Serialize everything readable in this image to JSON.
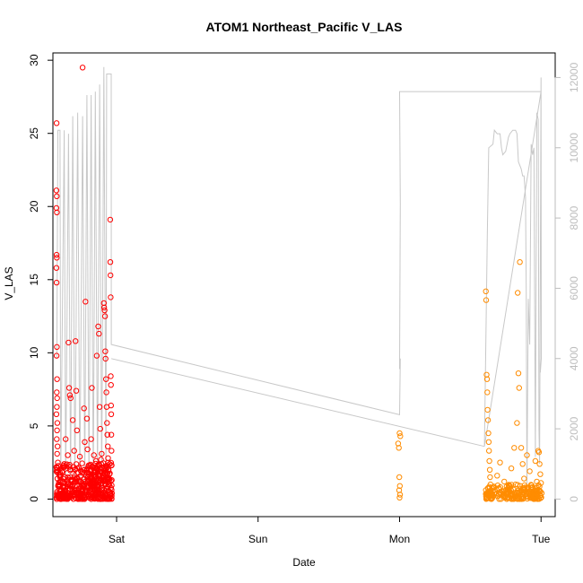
{
  "chart_data": {
    "type": "scatter",
    "title": "ATOM1 Northeast_Pacific V_LAS",
    "xlabel": "Date",
    "ylabel": "V_LAS",
    "x_ticks": [
      "Sat",
      "Sun",
      "Mon",
      "Tue"
    ],
    "x_tick_days": [
      1,
      2,
      3,
      4
    ],
    "xlim": [
      0.55,
      4.1
    ],
    "ylim": [
      -1.2,
      30.5
    ],
    "y_ticks": [
      0,
      5,
      10,
      15,
      20,
      25,
      30
    ],
    "y2lim": [
      -500,
      12700
    ],
    "y2_ticks": [
      0,
      2000,
      4000,
      6000,
      8000,
      10000,
      12000
    ],
    "grid": false,
    "colors": {
      "series_red": "#ff0000",
      "series_orange": "#ff8c00",
      "depth_line": "#c8c8c8",
      "right_axis": "#bdbdbd"
    },
    "series": [
      {
        "color": "#ff0000",
        "points": [
          [
            0.576,
            25.7
          ],
          [
            0.575,
            21.1
          ],
          [
            0.577,
            20.7
          ],
          [
            0.575,
            19.9
          ],
          [
            0.578,
            19.6
          ],
          [
            0.576,
            16.7
          ],
          [
            0.577,
            16.5
          ],
          [
            0.575,
            15.8
          ],
          [
            0.576,
            14.8
          ],
          [
            0.578,
            10.4
          ],
          [
            0.576,
            9.8
          ],
          [
            0.579,
            8.2
          ],
          [
            0.577,
            7.3
          ],
          [
            0.58,
            6.9
          ],
          [
            0.578,
            6.3
          ],
          [
            0.575,
            5.8
          ],
          [
            0.581,
            5.2
          ],
          [
            0.579,
            4.7
          ],
          [
            0.577,
            4.1
          ],
          [
            0.583,
            3.6
          ],
          [
            0.58,
            3.1
          ],
          [
            0.585,
            2.5
          ],
          [
            0.578,
            2.0
          ],
          [
            0.582,
            1.4
          ],
          [
            0.586,
            0.9
          ],
          [
            0.579,
            0.5
          ],
          [
            0.584,
            0.2
          ],
          [
            0.6,
            1.8
          ],
          [
            0.62,
            0.4
          ],
          [
            0.63,
            2.4
          ],
          [
            0.64,
            4.1
          ],
          [
            0.65,
            0.9
          ],
          [
            0.66,
            10.7
          ],
          [
            0.665,
            7.6
          ],
          [
            0.67,
            7.1
          ],
          [
            0.675,
            6.9
          ],
          [
            0.68,
            1.2
          ],
          [
            0.69,
            5.4
          ],
          [
            0.7,
            3.3
          ],
          [
            0.71,
            10.8
          ],
          [
            0.715,
            7.4
          ],
          [
            0.72,
            4.7
          ],
          [
            0.73,
            1.8
          ],
          [
            0.74,
            2.9
          ],
          [
            0.75,
            0.3
          ],
          [
            0.76,
            29.5
          ],
          [
            0.77,
            6.2
          ],
          [
            0.775,
            3.9
          ],
          [
            0.78,
            13.5
          ],
          [
            0.79,
            5.5
          ],
          [
            0.8,
            2.2
          ],
          [
            0.81,
            0.6
          ],
          [
            0.82,
            4.1
          ],
          [
            0.825,
            7.6
          ],
          [
            0.83,
            1.1
          ],
          [
            0.84,
            3.0
          ],
          [
            0.85,
            0.4
          ],
          [
            0.86,
            9.8
          ],
          [
            0.87,
            11.8
          ],
          [
            0.875,
            11.3
          ],
          [
            0.88,
            6.3
          ],
          [
            0.885,
            4.8
          ],
          [
            0.89,
            2.7
          ],
          [
            0.9,
            1.3
          ],
          [
            0.905,
            0.2
          ],
          [
            0.91,
            13.4
          ],
          [
            0.912,
            13.1
          ],
          [
            0.915,
            12.9
          ],
          [
            0.918,
            12.5
          ],
          [
            0.92,
            10.1
          ],
          [
            0.922,
            9.6
          ],
          [
            0.925,
            8.2
          ],
          [
            0.928,
            7.3
          ],
          [
            0.93,
            6.3
          ],
          [
            0.932,
            5.2
          ],
          [
            0.935,
            4.4
          ],
          [
            0.938,
            3.6
          ],
          [
            0.94,
            2.8
          ],
          [
            0.942,
            2.0
          ],
          [
            0.945,
            1.2
          ],
          [
            0.948,
            0.5
          ],
          [
            0.955,
            19.1
          ],
          [
            0.956,
            16.2
          ],
          [
            0.957,
            15.3
          ],
          [
            0.958,
            13.8
          ],
          [
            0.959,
            8.4
          ],
          [
            0.96,
            7.8
          ],
          [
            0.961,
            6.4
          ],
          [
            0.962,
            5.8
          ],
          [
            0.963,
            4.4
          ],
          [
            0.964,
            3.3
          ],
          [
            0.965,
            2.3
          ],
          [
            0.966,
            1.3
          ],
          [
            0.967,
            0.4
          ],
          [
            0.61,
            0.3
          ],
          [
            0.635,
            1.5
          ],
          [
            0.655,
            3.0
          ],
          [
            0.685,
            0.7
          ],
          [
            0.705,
            2.0
          ],
          [
            0.725,
            0.1
          ],
          [
            0.745,
            1.6
          ],
          [
            0.765,
            0.9
          ],
          [
            0.795,
            3.4
          ],
          [
            0.815,
            1.9
          ],
          [
            0.835,
            0.2
          ],
          [
            0.855,
            2.6
          ],
          [
            0.875,
            0.8
          ],
          [
            0.895,
            3.1
          ]
        ],
        "dense_band": {
          "x_from": 0.575,
          "x_to": 0.967,
          "y_from": 0.0,
          "y_to": 2.5
        }
      },
      {
        "color": "#ff8c00",
        "points": [
          [
            2.99,
            3.8
          ],
          [
            2.995,
            3.5
          ],
          [
            3.0,
            4.5
          ],
          [
            3.005,
            4.3
          ],
          [
            2.998,
            1.5
          ],
          [
            3.002,
            0.9
          ],
          [
            2.997,
            0.6
          ],
          [
            3.003,
            0.3
          ],
          [
            3.0,
            0.1
          ],
          [
            3.61,
            14.2
          ],
          [
            3.612,
            13.6
          ],
          [
            3.615,
            8.5
          ],
          [
            3.618,
            8.2
          ],
          [
            3.62,
            7.3
          ],
          [
            3.622,
            6.1
          ],
          [
            3.625,
            5.4
          ],
          [
            3.628,
            4.5
          ],
          [
            3.63,
            3.9
          ],
          [
            3.632,
            3.3
          ],
          [
            3.635,
            2.6
          ],
          [
            3.638,
            2.0
          ],
          [
            3.64,
            1.5
          ],
          [
            3.642,
            1.0
          ],
          [
            3.645,
            0.5
          ],
          [
            3.648,
            0.2
          ],
          [
            3.66,
            0.8
          ],
          [
            3.69,
            1.6
          ],
          [
            3.71,
            2.5
          ],
          [
            3.74,
            1.2
          ],
          [
            3.77,
            0.6
          ],
          [
            3.79,
            2.1
          ],
          [
            3.81,
            3.5
          ],
          [
            3.82,
            1.0
          ],
          [
            3.83,
            5.2
          ],
          [
            3.835,
            14.1
          ],
          [
            3.84,
            8.6
          ],
          [
            3.845,
            7.6
          ],
          [
            3.85,
            16.2
          ],
          [
            3.86,
            3.5
          ],
          [
            3.87,
            2.4
          ],
          [
            3.88,
            1.4
          ],
          [
            3.9,
            3.0
          ],
          [
            3.92,
            1.9
          ],
          [
            3.94,
            0.8
          ],
          [
            3.96,
            2.6
          ],
          [
            3.97,
            1.2
          ],
          [
            3.98,
            3.3
          ],
          [
            3.985,
            3.2
          ],
          [
            3.99,
            2.4
          ],
          [
            3.995,
            1.7
          ],
          [
            4.0,
            1.1
          ],
          [
            4.005,
            0.4
          ]
        ],
        "dense_band": {
          "x_from": 3.61,
          "x_to": 4.005,
          "y_from": 0.0,
          "y_to": 1.0
        }
      }
    ],
    "depth_line": {
      "color": "#c8c8c8",
      "points": [
        [
          0.578,
          4000
        ],
        [
          0.585,
          10500
        ],
        [
          0.6,
          10500
        ],
        [
          0.605,
          500
        ],
        [
          0.63,
          10500
        ],
        [
          0.64,
          300
        ],
        [
          0.66,
          10400
        ],
        [
          0.675,
          200
        ],
        [
          0.69,
          10900
        ],
        [
          0.705,
          300
        ],
        [
          0.725,
          11000
        ],
        [
          0.74,
          250
        ],
        [
          0.76,
          10900
        ],
        [
          0.775,
          300
        ],
        [
          0.79,
          11500
        ],
        [
          0.805,
          200
        ],
        [
          0.82,
          11500
        ],
        [
          0.835,
          300
        ],
        [
          0.85,
          11600
        ],
        [
          0.865,
          300
        ],
        [
          0.88,
          11800
        ],
        [
          0.895,
          300
        ],
        [
          0.91,
          12300
        ],
        [
          0.925,
          500
        ],
        [
          0.93,
          12100
        ],
        [
          0.962,
          12100
        ],
        [
          0.963,
          4400
        ],
        [
          3.0,
          2400
        ],
        [
          3.005,
          4000
        ],
        [
          3.0,
          3700
        ],
        [
          3.005,
          8400
        ],
        [
          3.0,
          11600
        ],
        [
          3.0,
          11600
        ],
        [
          4.0,
          11600
        ],
        [
          3.6,
          1500
        ],
        [
          3.62,
          7500
        ],
        [
          3.63,
          10000
        ],
        [
          3.66,
          10100
        ],
        [
          3.67,
          10500
        ],
        [
          3.69,
          10400
        ],
        [
          3.71,
          10400
        ],
        [
          3.72,
          10000
        ],
        [
          3.73,
          9800
        ],
        [
          3.75,
          9900
        ],
        [
          3.77,
          10300
        ],
        [
          3.78,
          10400
        ],
        [
          3.8,
          10500
        ],
        [
          3.82,
          10500
        ],
        [
          3.83,
          10400
        ],
        [
          3.84,
          9600
        ],
        [
          3.86,
          9400
        ],
        [
          3.87,
          9200
        ],
        [
          3.88,
          9200
        ],
        [
          3.89,
          8600
        ],
        [
          3.895,
          6000
        ],
        [
          3.9,
          300
        ],
        [
          3.91,
          5700
        ],
        [
          3.92,
          4400
        ],
        [
          3.93,
          10100
        ],
        [
          3.94,
          9800
        ],
        [
          3.95,
          10000
        ],
        [
          3.96,
          1200
        ],
        [
          3.97,
          11000
        ],
        [
          3.98,
          10800
        ],
        [
          3.985,
          2000
        ],
        [
          3.99,
          1000
        ],
        [
          4.0,
          12000
        ],
        [
          4.0,
          11800
        ],
        [
          4.002,
          4000
        ],
        [
          3.995,
          3600
        ]
      ]
    },
    "depth_line_bridge": [
      [
        0.963,
        4000
      ],
      [
        3.6,
        1500
      ]
    ]
  }
}
